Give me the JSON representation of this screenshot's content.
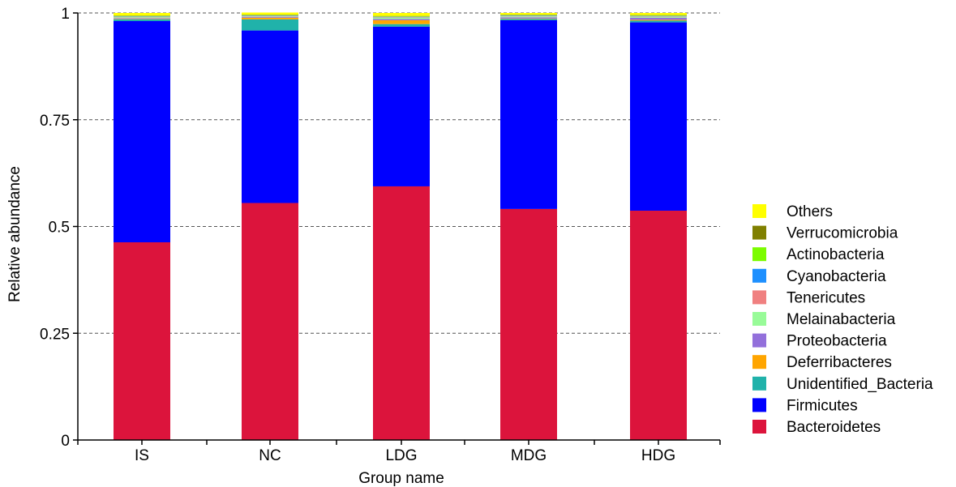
{
  "chart_data": {
    "type": "bar",
    "stacked": true,
    "xlabel": "Group name",
    "ylabel": "Relative abundance",
    "ylim": [
      0,
      1
    ],
    "yticks": [
      {
        "value": 0,
        "label": "0"
      },
      {
        "value": 0.25,
        "label": "0.25"
      },
      {
        "value": 0.5,
        "label": "0.5"
      },
      {
        "value": 0.75,
        "label": "0.75"
      },
      {
        "value": 1,
        "label": "1"
      }
    ],
    "grid": "horizontal dashed",
    "legend_position": "right",
    "categories": [
      "IS",
      "NC",
      "LDG",
      "MDG",
      "HDG"
    ],
    "series": [
      {
        "name": "Bacteroidetes",
        "color": "#dc143c",
        "values": [
          0.463,
          0.555,
          0.594,
          0.541,
          0.537
        ]
      },
      {
        "name": "Firmicutes",
        "color": "#0000ff",
        "values": [
          0.518,
          0.404,
          0.374,
          0.442,
          0.441
        ]
      },
      {
        "name": "Unidentified_Bacteria",
        "color": "#20b2aa",
        "values": [
          0.004,
          0.026,
          0.006,
          0.003,
          0.004
        ]
      },
      {
        "name": "Deferribacteres",
        "color": "#ffa500",
        "values": [
          0.001,
          0.004,
          0.009,
          0.001,
          0.002
        ]
      },
      {
        "name": "Proteobacteria",
        "color": "#9370db",
        "values": [
          0.002,
          0.002,
          0.003,
          0.003,
          0.005
        ]
      },
      {
        "name": "Melainabacteria",
        "color": "#98fb98",
        "values": [
          0.002,
          0.001,
          0.003,
          0.002,
          0.002
        ]
      },
      {
        "name": "Tenericutes",
        "color": "#f08080",
        "values": [
          0.001,
          0.001,
          0.001,
          0.001,
          0.001
        ]
      },
      {
        "name": "Cyanobacteria",
        "color": "#1e90ff",
        "values": [
          0.001,
          0.001,
          0.001,
          0.001,
          0.001
        ]
      },
      {
        "name": "Actinobacteria",
        "color": "#7cfc00",
        "values": [
          0.001,
          0.001,
          0.001,
          0.001,
          0.001
        ]
      },
      {
        "name": "Verrucomicrobia",
        "color": "#808000",
        "values": [
          0.001,
          0.001,
          0.001,
          0.001,
          0.001
        ]
      },
      {
        "name": "Others",
        "color": "#ffff00",
        "values": [
          0.006,
          0.005,
          0.007,
          0.004,
          0.005
        ]
      }
    ]
  }
}
